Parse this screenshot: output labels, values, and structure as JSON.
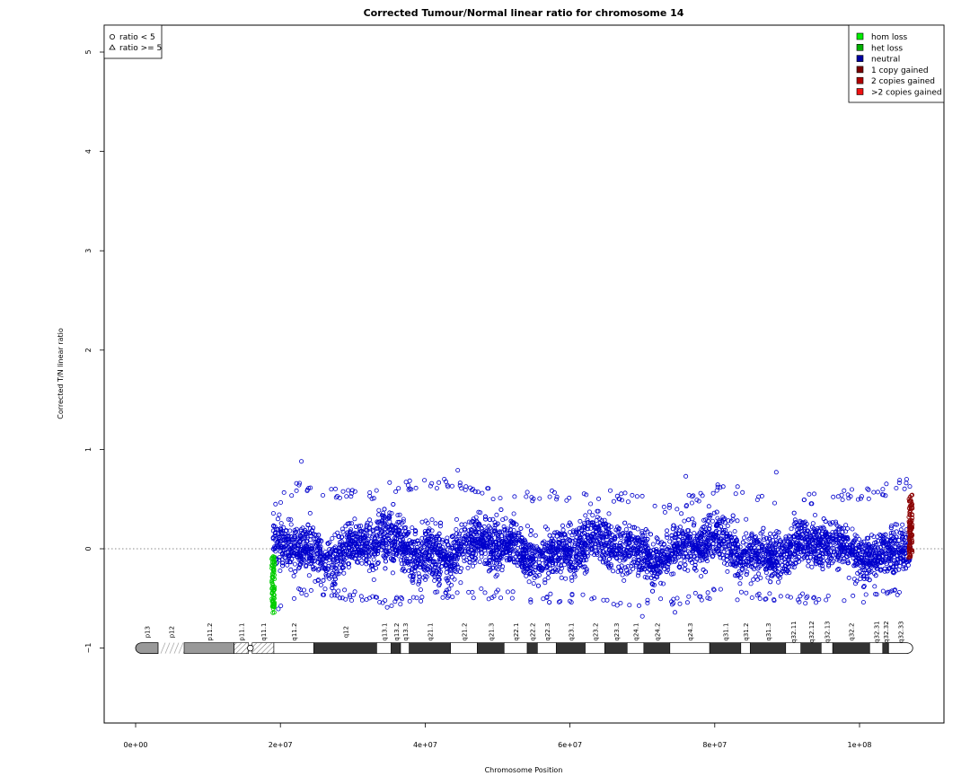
{
  "chart_data": {
    "type": "scatter",
    "title": "Corrected Tumour/Normal linear ratio for chromosome  14",
    "xlabel": "Chromosome Position",
    "ylabel": "Corrected T/N linear ratio",
    "xlim": [
      -4300000,
      111500000
    ],
    "ylim": [
      -1.8,
      5.3
    ],
    "x_ticks": [
      {
        "value": 0,
        "label": "0e+00"
      },
      {
        "value": 20000000,
        "label": "2e+07"
      },
      {
        "value": 40000000,
        "label": "4e+07"
      },
      {
        "value": 60000000,
        "label": "6e+07"
      },
      {
        "value": 80000000,
        "label": "8e+07"
      },
      {
        "value": 100000000,
        "label": "1e+08"
      }
    ],
    "y_ticks": [
      {
        "value": -1,
        "label": "−1"
      },
      {
        "value": 0,
        "label": "0"
      },
      {
        "value": 1,
        "label": "1"
      },
      {
        "value": 2,
        "label": "2"
      },
      {
        "value": 3,
        "label": "3"
      },
      {
        "value": 4,
        "label": "4"
      },
      {
        "value": 5,
        "label": "5"
      }
    ],
    "reference_line": 0,
    "shape_legend": {
      "position": "top-left",
      "items": [
        {
          "shape": "circle",
          "label": "ratio < 5"
        },
        {
          "shape": "triangle",
          "label": "ratio >= 5"
        }
      ]
    },
    "color_legend": {
      "position": "top-right",
      "items": [
        {
          "label": "hom loss",
          "color": "#00ee00"
        },
        {
          "label": "het loss",
          "color": "#00b000"
        },
        {
          "label": "neutral",
          "color": "#0000a0"
        },
        {
          "label": "1 copy gained",
          "color": "#7a0000"
        },
        {
          "label": "2 copies gained",
          "color": "#b00000"
        },
        {
          "label": ">2 copies gained",
          "color": "#ee1111"
        }
      ]
    },
    "series": [
      {
        "name": "neutral",
        "color": "#0000cc",
        "x_range": [
          19000000,
          107000000
        ],
        "profile": [
          {
            "x": 19000000,
            "lo": -0.55,
            "hi": 0.35
          },
          {
            "x": 22000000,
            "lo": -0.4,
            "hi": 0.55
          },
          {
            "x": 28000000,
            "lo": -0.4,
            "hi": 0.5
          },
          {
            "x": 32000000,
            "lo": -0.45,
            "hi": 0.45
          },
          {
            "x": 35000000,
            "lo": -0.5,
            "hi": 0.55
          },
          {
            "x": 42000000,
            "lo": -0.4,
            "hi": 0.6
          },
          {
            "x": 48000000,
            "lo": -0.4,
            "hi": 0.5
          },
          {
            "x": 55000000,
            "lo": -0.45,
            "hi": 0.45
          },
          {
            "x": 62000000,
            "lo": -0.45,
            "hi": 0.5
          },
          {
            "x": 68000000,
            "lo": -0.5,
            "hi": 0.45
          },
          {
            "x": 74000000,
            "lo": -0.5,
            "hi": 0.35
          },
          {
            "x": 80000000,
            "lo": -0.4,
            "hi": 0.55
          },
          {
            "x": 88000000,
            "lo": -0.45,
            "hi": 0.45
          },
          {
            "x": 95000000,
            "lo": -0.45,
            "hi": 0.45
          },
          {
            "x": 102000000,
            "lo": -0.45,
            "hi": 0.5
          },
          {
            "x": 107000000,
            "lo": -0.35,
            "hi": 0.6
          }
        ],
        "outliers": [
          {
            "x": 22900000,
            "y": 0.88
          },
          {
            "x": 44500000,
            "y": 0.79
          },
          {
            "x": 76000000,
            "y": 0.73
          },
          {
            "x": 88500000,
            "y": 0.77
          },
          {
            "x": 70000000,
            "y": -0.68
          },
          {
            "x": 74500000,
            "y": -0.64
          },
          {
            "x": 106500000,
            "y": 0.7
          }
        ]
      },
      {
        "name": "het loss",
        "color": "#00cc00",
        "x_range": [
          18800000,
          19200000
        ],
        "y_range": [
          -0.65,
          -0.05
        ]
      },
      {
        "name": "1 copy gained",
        "color": "#8b0000",
        "x_range": [
          106800000,
          107300000
        ],
        "y_range": [
          -0.1,
          0.55
        ]
      }
    ],
    "ideogram": {
      "y": -1,
      "bands": [
        {
          "name": "p13",
          "start": 0,
          "end": 3100000,
          "stain": "gvar"
        },
        {
          "name": "p12",
          "start": 3100000,
          "end": 6700000,
          "stain": "stalk"
        },
        {
          "name": "p11.2",
          "start": 6700000,
          "end": 13600000,
          "stain": "gvar"
        },
        {
          "name": "p11.1",
          "start": 13600000,
          "end": 15600000,
          "stain": "hatch"
        },
        {
          "name": "q11.1",
          "start": 16100000,
          "end": 19100000,
          "stain": "hatch"
        },
        {
          "name": "q11.2",
          "start": 19100000,
          "end": 24600000,
          "stain": "gneg"
        },
        {
          "name": "q12",
          "start": 24600000,
          "end": 33300000,
          "stain": "gpos"
        },
        {
          "name": "q13.1",
          "start": 33300000,
          "end": 35300000,
          "stain": "gneg"
        },
        {
          "name": "q13.2",
          "start": 35300000,
          "end": 36600000,
          "stain": "gpos"
        },
        {
          "name": "q13.3",
          "start": 36600000,
          "end": 37800000,
          "stain": "gneg"
        },
        {
          "name": "q21.1",
          "start": 37800000,
          "end": 43500000,
          "stain": "gpos"
        },
        {
          "name": "q21.2",
          "start": 43500000,
          "end": 47200000,
          "stain": "gneg"
        },
        {
          "name": "q21.3",
          "start": 47200000,
          "end": 50900000,
          "stain": "gpos"
        },
        {
          "name": "q22.1",
          "start": 50900000,
          "end": 54100000,
          "stain": "gneg"
        },
        {
          "name": "q22.2",
          "start": 54100000,
          "end": 55500000,
          "stain": "gpos"
        },
        {
          "name": "q22.3",
          "start": 55500000,
          "end": 58100000,
          "stain": "gneg"
        },
        {
          "name": "q23.1",
          "start": 58100000,
          "end": 62100000,
          "stain": "gpos"
        },
        {
          "name": "q23.2",
          "start": 62100000,
          "end": 64800000,
          "stain": "gneg"
        },
        {
          "name": "q23.3",
          "start": 64800000,
          "end": 67900000,
          "stain": "gpos"
        },
        {
          "name": "q24.1",
          "start": 67900000,
          "end": 70200000,
          "stain": "gneg"
        },
        {
          "name": "q24.2",
          "start": 70200000,
          "end": 73800000,
          "stain": "gpos"
        },
        {
          "name": "q24.3",
          "start": 73800000,
          "end": 79300000,
          "stain": "gneg"
        },
        {
          "name": "q31.1",
          "start": 79300000,
          "end": 83600000,
          "stain": "gpos"
        },
        {
          "name": "q31.2",
          "start": 83600000,
          "end": 84900000,
          "stain": "gneg"
        },
        {
          "name": "q31.3",
          "start": 84900000,
          "end": 89800000,
          "stain": "gpos"
        },
        {
          "name": "q32.11",
          "start": 89800000,
          "end": 91900000,
          "stain": "gneg"
        },
        {
          "name": "q32.12",
          "start": 91900000,
          "end": 94700000,
          "stain": "gpos"
        },
        {
          "name": "q32.13",
          "start": 94700000,
          "end": 96300000,
          "stain": "gneg"
        },
        {
          "name": "q32.2",
          "start": 96300000,
          "end": 101400000,
          "stain": "gpos"
        },
        {
          "name": "q32.31",
          "start": 101400000,
          "end": 103200000,
          "stain": "gneg"
        },
        {
          "name": "q32.32",
          "start": 103200000,
          "end": 104000000,
          "stain": "gpos"
        },
        {
          "name": "q32.33",
          "start": 104000000,
          "end": 107349540,
          "stain": "gneg"
        }
      ]
    }
  }
}
